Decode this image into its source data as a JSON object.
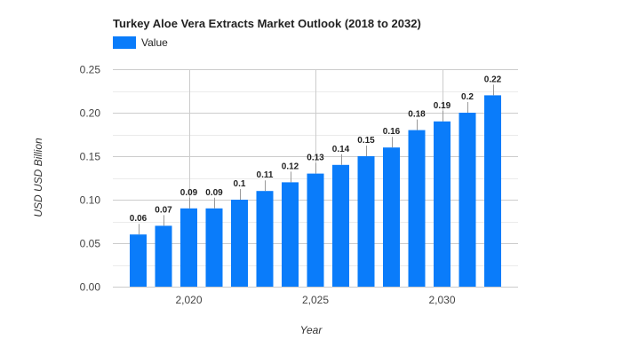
{
  "chart_data": {
    "type": "bar",
    "title": "Turkey Aloe Vera Extracts Market Outlook (2018 to 2032)",
    "xlabel": "Year",
    "ylabel": "USD USD Billion",
    "legend": {
      "position": "top-left",
      "entries": [
        "Value"
      ]
    },
    "grid": true,
    "xlim": [
      2017,
      2033
    ],
    "ylim": [
      0,
      0.25
    ],
    "x_ticks": [
      {
        "value": 2020,
        "label": "2,020"
      },
      {
        "value": 2025,
        "label": "2,025"
      },
      {
        "value": 2030,
        "label": "2,030"
      }
    ],
    "y_ticks": [
      {
        "value": 0,
        "label": "0.00"
      },
      {
        "value": 0.05,
        "label": "0.05"
      },
      {
        "value": 0.1,
        "label": "0.10"
      },
      {
        "value": 0.15,
        "label": "0.15"
      },
      {
        "value": 0.2,
        "label": "0.20"
      },
      {
        "value": 0.25,
        "label": "0.25"
      }
    ],
    "series": [
      {
        "name": "Value",
        "color": "#0a7cfa",
        "x": [
          2018,
          2019,
          2020,
          2021,
          2022,
          2023,
          2024,
          2025,
          2026,
          2027,
          2028,
          2029,
          2030,
          2031,
          2032
        ],
        "values": [
          0.06,
          0.07,
          0.09,
          0.09,
          0.1,
          0.11,
          0.12,
          0.13,
          0.14,
          0.15,
          0.16,
          0.18,
          0.19,
          0.2,
          0.22
        ],
        "labels": [
          "0.06",
          "0.07",
          "0.09",
          "0.09",
          "0.1",
          "0.11",
          "0.12",
          "0.13",
          "0.14",
          "0.15",
          "0.16",
          "0.18",
          "0.19",
          "0.2",
          "0.22"
        ]
      }
    ]
  }
}
